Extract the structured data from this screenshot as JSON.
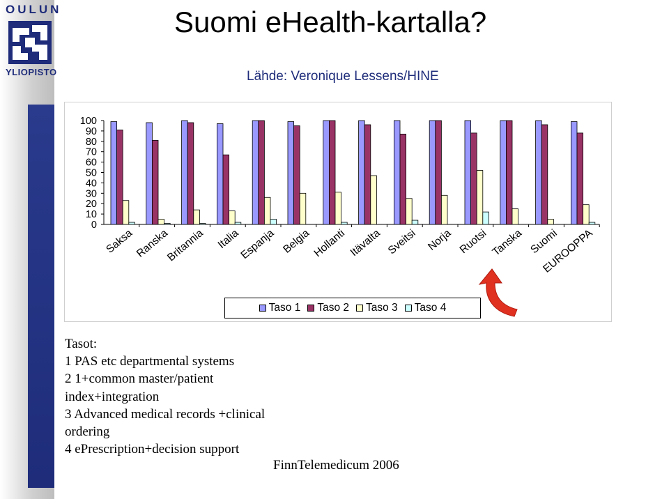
{
  "logo": {
    "top_text": "OULUN",
    "bottom_text": "YLIOPISTO"
  },
  "slide": {
    "title": "Suomi eHealth-kartalla?",
    "source": "Lähde: Veronique Lessens/HINE"
  },
  "colors": {
    "taso1": "#9999ff",
    "taso2": "#993366",
    "taso3": "#ffffcc",
    "taso4": "#ccffff",
    "brand": "#1e2c7a",
    "arrow": "#e03020"
  },
  "chart_data": {
    "type": "bar",
    "categories": [
      "Saksa",
      "Ranska",
      "Britannia",
      "Italia",
      "Espanja",
      "Belgia",
      "Hollanti",
      "Itävalta",
      "Sveitsi",
      "Norja",
      "Ruotsi",
      "Tanska",
      "Suomi",
      "EUROOPPA"
    ],
    "series": [
      {
        "name": "Taso 1",
        "values": [
          99,
          98,
          100,
          97,
          100,
          99,
          100,
          100,
          100,
          100,
          100,
          100,
          100,
          99
        ]
      },
      {
        "name": "Taso 2",
        "values": [
          91,
          81,
          98,
          67,
          100,
          95,
          100,
          96,
          87,
          100,
          88,
          100,
          96,
          88
        ]
      },
      {
        "name": "Taso 3",
        "values": [
          23,
          5,
          14,
          13,
          26,
          30,
          31,
          47,
          25,
          28,
          52,
          15,
          5,
          19
        ]
      },
      {
        "name": "Taso 4",
        "values": [
          2,
          1,
          1,
          2,
          5,
          0,
          2,
          0,
          4,
          0,
          12,
          0,
          0,
          2
        ]
      }
    ],
    "ylim": [
      0,
      100
    ],
    "yticks": [
      "0",
      "10",
      "20",
      "30",
      "40",
      "50",
      "60",
      "70",
      "80",
      "90",
      "100"
    ],
    "legend_position": "bottom",
    "grid": false
  },
  "notes": {
    "heading": "Tasot:",
    "lines": [
      "1  PAS etc departmental systems",
      "2  1+common master/patient",
      "index+integration",
      "3  Advanced medical records +clinical",
      "ordering",
      "4  ePrescription+decision support"
    ]
  },
  "footer": "FinnTelemedicum 2006"
}
